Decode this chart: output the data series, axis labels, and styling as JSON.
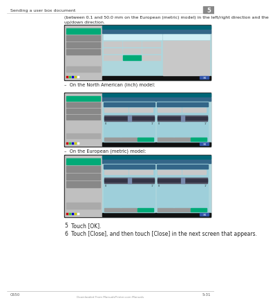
{
  "bg_color": "#ffffff",
  "header_text": "Sending a user box document",
  "header_number": "5",
  "footer_left": "C650",
  "footer_right": "5-31",
  "body_text_1": "(between 0.1 and 50.0 mm on the European (metric) model) in the left/right direction and the\nup/down direction.",
  "bullet1_label": "–  On the North American (inch) model:",
  "bullet2_label": "–  On the European (metric) model:",
  "step5_num": "5",
  "step5_text": "Touch [OK].",
  "step6_num": "6",
  "step6_text": "Touch [Close], and then touch [Close] in the next screen that appears.",
  "footer_note": "Downloaded From ManualsPrinter.com Manuals",
  "screen_bg": "#aed6dc",
  "screen_dark": "#111111",
  "screen_sidebar_gray": "#c0c0c0",
  "screen_sidebar_dark": "#888888",
  "screen_green": "#00aa77",
  "screen_teal_bar": "#006677",
  "screen_black_bar": "#111111",
  "screen_btn_gray": "#c8c8c8",
  "screen_blue_ok": "#3355aa",
  "main_font_size": 5.5,
  "small_font_size": 4.5,
  "label_font_size": 4.8
}
